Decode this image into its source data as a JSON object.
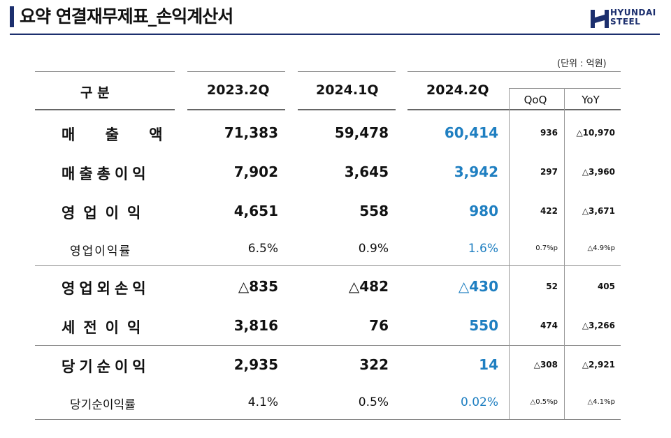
{
  "header": {
    "title": "요약 연결재무제표_손익계산서",
    "logo_line1": "HYUNDAI",
    "logo_line2": "STEEL"
  },
  "unit": "(단위 : 억원)",
  "table": {
    "col_headers": [
      "구 분",
      "2023.2Q",
      "2024.1Q",
      "2024.2Q"
    ],
    "sub_headers": [
      "QoQ",
      "YoY"
    ],
    "rows": [
      {
        "label": "매 출 액",
        "v2023_2q": "71,383",
        "v2024_1q": "59,478",
        "v2024_2q": "60,414",
        "qoq": "936",
        "yoy": "△10,970"
      },
      {
        "label": "매출총이익",
        "v2023_2q": "7,902",
        "v2024_1q": "3,645",
        "v2024_2q": "3,942",
        "qoq": "297",
        "yoy": "△3,960"
      },
      {
        "label": "영업이익",
        "v2023_2q": "4,651",
        "v2024_1q": "558",
        "v2024_2q": "980",
        "qoq": "422",
        "yoy": "△3,671"
      },
      {
        "label": "영업이익률",
        "v2023_2q": "6.5%",
        "v2024_1q": "0.9%",
        "v2024_2q": "1.6%",
        "qoq": "0.7%p",
        "yoy": "△4.9%p"
      },
      {
        "label": "영업외손익",
        "v2023_2q": "△835",
        "v2024_1q": "△482",
        "v2024_2q": "△430",
        "qoq": "52",
        "yoy": "405"
      },
      {
        "label": "세전이익",
        "v2023_2q": "3,816",
        "v2024_1q": "76",
        "v2024_2q": "550",
        "qoq": "474",
        "yoy": "△3,266"
      },
      {
        "label": "당기순이익",
        "v2023_2q": "2,935",
        "v2024_1q": "322",
        "v2024_2q": "14",
        "qoq": "△308",
        "yoy": "△2,921"
      },
      {
        "label": "당기순이익률",
        "v2023_2q": "4.1%",
        "v2024_1q": "0.5%",
        "v2024_2q": "0.02%",
        "qoq": "△0.5%p",
        "yoy": "△4.1%p"
      }
    ]
  },
  "colors": {
    "title_bar": "#1c2f6e",
    "highlight_blue": "#1f7fc1"
  }
}
